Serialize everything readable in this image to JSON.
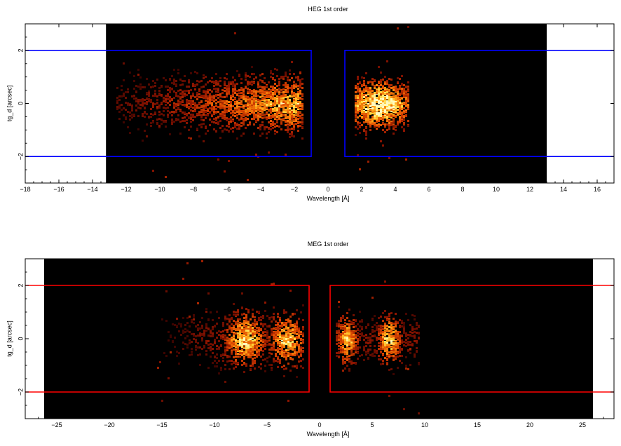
{
  "chart_data": [
    {
      "type": "heatmap",
      "title": "HEG 1st order",
      "xlabel": "Wavelength [Å]",
      "ylabel": "tg_d [arcsec]",
      "xlim": [
        -18,
        17
      ],
      "ylim": [
        -3,
        3
      ],
      "xticks": [
        -18,
        -16,
        -14,
        -12,
        -10,
        -8,
        -6,
        -4,
        -2,
        0,
        2,
        4,
        6,
        8,
        10,
        12,
        14,
        16
      ],
      "yticks": [
        -2,
        0,
        2
      ],
      "detector_range": [
        -13.2,
        13.0
      ],
      "background_color": "#000000",
      "box_color": "#0000ff",
      "extraction_boxes": [
        {
          "x": [
            -18,
            -1.0
          ],
          "y": [
            -2.0,
            2.0
          ],
          "left_open": true
        },
        {
          "x": [
            1.0,
            17
          ],
          "y": [
            -2.0,
            2.0
          ],
          "right_open": true
        }
      ],
      "clusters": [
        {
          "x_range": [
            -12.6,
            -1.5
          ],
          "y_center": 0.0,
          "y_spread": 0.9,
          "peak_x": -2.6,
          "density": "rising"
        },
        {
          "x_range": [
            1.6,
            4.8
          ],
          "y_center": 0.0,
          "y_spread": 0.8,
          "peak_x": 3.0,
          "density": "peak"
        }
      ]
    },
    {
      "type": "heatmap",
      "title": "MEG 1st order",
      "xlabel": "Wavelength [Å]",
      "ylabel": "tg_d [arcsec]",
      "xlim": [
        -28,
        28
      ],
      "ylim": [
        -3,
        3
      ],
      "xticks": [
        -25,
        -20,
        -15,
        -10,
        -5,
        0,
        5,
        10,
        15,
        20,
        25
      ],
      "yticks": [
        -2,
        0,
        2
      ],
      "detector_range": [
        -26.2,
        26.0
      ],
      "background_color": "#000000",
      "box_color": "#ff0000",
      "extraction_boxes": [
        {
          "x": [
            -28,
            -1.0
          ],
          "y": [
            -2.0,
            2.0
          ],
          "left_open": true
        },
        {
          "x": [
            1.0,
            28
          ],
          "y": [
            -2.0,
            2.0
          ],
          "right_open": true
        }
      ],
      "clusters": [
        {
          "x_range": [
            -15.5,
            -1.5
          ],
          "y_center": 0.0,
          "y_spread": 0.9,
          "peak_x": -7.2,
          "density": "double",
          "second_peak_x": -3.2
        },
        {
          "x_range": [
            1.5,
            9.5
          ],
          "y_center": 0.0,
          "y_spread": 0.8,
          "peak_x": 6.5,
          "density": "double",
          "second_peak_x": 2.5
        }
      ]
    }
  ]
}
